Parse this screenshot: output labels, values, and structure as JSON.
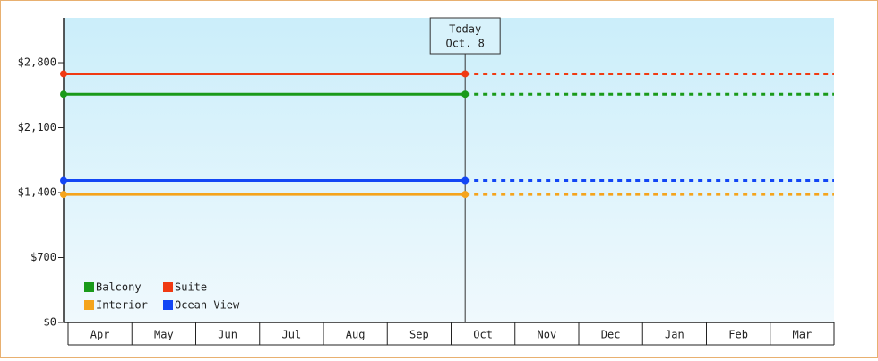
{
  "chart_data": {
    "type": "line",
    "categories": [
      "Apr",
      "May",
      "Jun",
      "Jul",
      "Aug",
      "Sep",
      "Oct",
      "Nov",
      "Dec",
      "Jan",
      "Feb",
      "Mar"
    ],
    "series": [
      {
        "name": "Balcony",
        "color": "#1a9a1a",
        "value": 2460
      },
      {
        "name": "Suite",
        "color": "#f03a12",
        "value": 2680
      },
      {
        "name": "Interior",
        "color": "#f5a41c",
        "value": 1380
      },
      {
        "name": "Ocean View",
        "color": "#1246f5",
        "value": 1530
      }
    ],
    "today": {
      "label": "Today",
      "date": "Oct. 8",
      "x": 6.22
    },
    "ylim": [
      0,
      3283
    ],
    "yticks": [
      {
        "value": 0,
        "label": "$0"
      },
      {
        "value": 700,
        "label": "$700"
      },
      {
        "value": 1400,
        "label": "$1,400"
      },
      {
        "value": 2100,
        "label": "$2,100"
      },
      {
        "value": 2800,
        "label": "$2,800"
      }
    ],
    "legend": "bottom-left"
  }
}
